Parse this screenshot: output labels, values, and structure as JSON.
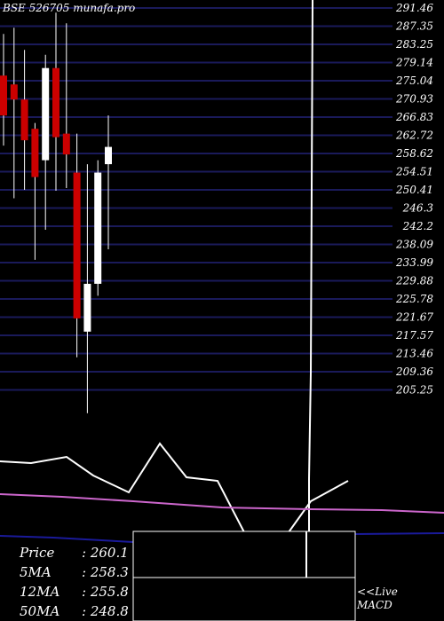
{
  "title": "BSE 526705 munafa.pro",
  "colors": {
    "background": "#000000",
    "grid": "#1a1a5a",
    "up_candle": "#ffffff",
    "down_candle": "#cc0000",
    "ma_white": "#ffffff",
    "ma_magenta": "#cc66cc",
    "ma_blue": "#1a1a9a"
  },
  "info": {
    "price_label": "Price",
    "price_value": ": 260.1",
    "ma5_label": "5MA",
    "ma5_value": ": 258.3",
    "ma12_label": "12MA",
    "ma12_value": ": 255.8",
    "ma50_label": "50MA",
    "ma50_value": ": 248.8"
  },
  "footer": {
    "line1": "<<Live",
    "line2": "MACD"
  },
  "chart_data": {
    "type": "candlestick",
    "title": "BSE 526705 munafa.pro",
    "y_ticks": [
      "291.46",
      "287.35",
      "283.25",
      "279.14",
      "275.04",
      "270.93",
      "266.83",
      "262.72",
      "258.62",
      "254.51",
      "250.41",
      "246.3",
      "242.2",
      "238.09",
      "233.99",
      "229.88",
      "225.78",
      "221.67",
      "217.57",
      "213.46",
      "209.36",
      "205.25"
    ],
    "ylim": [
      205.25,
      291.46
    ],
    "candles": [
      {
        "high": 285.6,
        "open": 276.2,
        "close": 267.2,
        "low": 260.4,
        "dir": "down"
      },
      {
        "high": 287.0,
        "open": 274.2,
        "close": 270.8,
        "low": 248.5,
        "dir": "down"
      },
      {
        "high": 282.0,
        "open": 270.8,
        "close": 261.6,
        "low": 250.4,
        "dir": "down"
      },
      {
        "high": 265.5,
        "open": 264.2,
        "close": 253.3,
        "low": 234.6,
        "dir": "down"
      },
      {
        "high": 280.9,
        "open": 257.1,
        "close": 277.9,
        "low": 241.4,
        "dir": "up"
      },
      {
        "high": 290.4,
        "open": 277.9,
        "close": 262.3,
        "low": 250.2,
        "dir": "down"
      },
      {
        "high": 288.0,
        "open": 263.1,
        "close": 258.4,
        "low": 250.8,
        "dir": "down"
      },
      {
        "high": 263.1,
        "open": 254.3,
        "close": 221.4,
        "low": 212.6,
        "dir": "down"
      },
      {
        "high": 256.2,
        "open": 218.4,
        "close": 229.2,
        "low": 200.0,
        "dir": "up"
      },
      {
        "high": 257.1,
        "open": 229.2,
        "close": 254.3,
        "low": 226.5,
        "dir": "up"
      },
      {
        "high": 267.2,
        "open": 256.2,
        "close": 260.1,
        "low": 237.0,
        "dir": "up"
      }
    ],
    "lines": [
      {
        "color": "#ffffff",
        "points": [
          [
            0,
            520
          ],
          [
            35,
            522
          ],
          [
            75,
            515
          ],
          [
            105,
            536
          ],
          [
            145,
            555
          ],
          [
            180,
            500
          ],
          [
            210,
            538
          ],
          [
            245,
            542
          ],
          [
            275,
            600
          ],
          [
            325,
            600
          ],
          [
            350,
            565
          ],
          [
            392,
            542
          ]
        ]
      },
      {
        "color": "#ffffff",
        "points": [
          [
            348,
            700
          ],
          [
            348,
            540
          ],
          [
            350,
            420
          ],
          [
            352,
            0
          ]
        ]
      },
      {
        "color": "#cc66cc",
        "points": [
          [
            0,
            557
          ],
          [
            70,
            560
          ],
          [
            150,
            565
          ],
          [
            250,
            572
          ],
          [
            350,
            574
          ],
          [
            430,
            575
          ],
          [
            500,
            578
          ]
        ]
      },
      {
        "color": "#1a1a9a",
        "points": [
          [
            0,
            604
          ],
          [
            60,
            606
          ],
          [
            150,
            611
          ],
          [
            250,
            610
          ],
          [
            330,
            607
          ],
          [
            400,
            602
          ],
          [
            500,
            601
          ]
        ]
      }
    ]
  }
}
